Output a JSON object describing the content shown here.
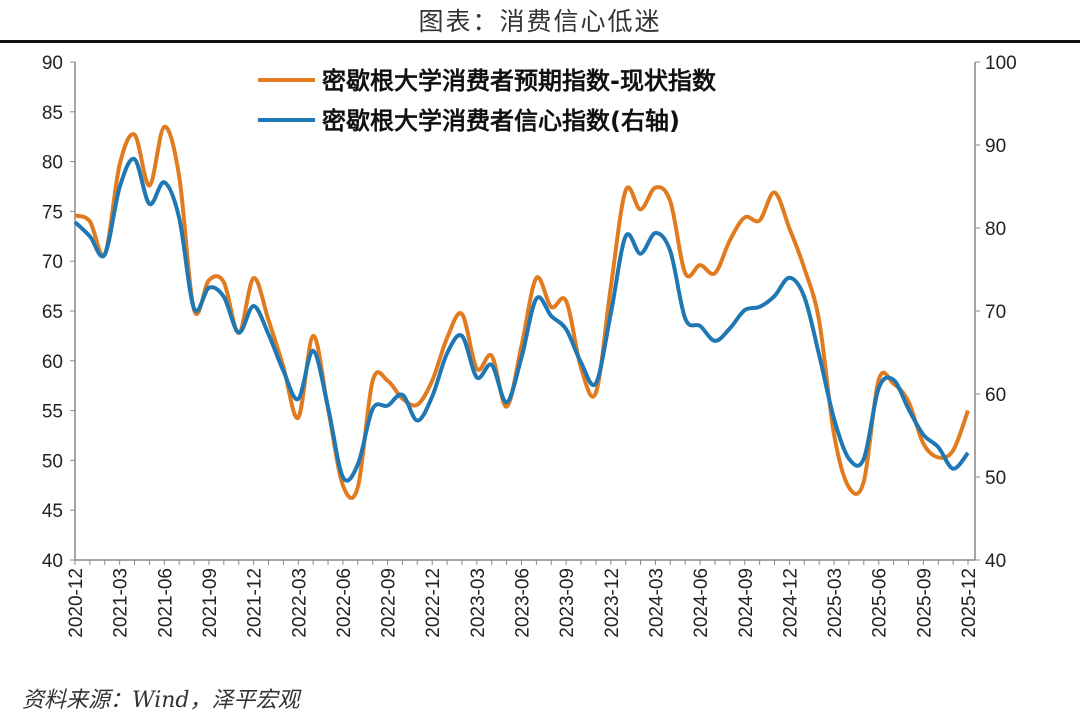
{
  "title": "图表：消费信心低迷",
  "source": "资料来源：Wind，泽平宏观",
  "chart_data": {
    "type": "line",
    "title": "图表：消费信心低迷",
    "x": [
      "2020-12",
      "2021-01",
      "2021-02",
      "2021-03",
      "2021-04",
      "2021-05",
      "2021-06",
      "2021-07",
      "2021-08",
      "2021-09",
      "2021-10",
      "2021-11",
      "2021-12",
      "2022-01",
      "2022-02",
      "2022-03",
      "2022-04",
      "2022-05",
      "2022-06",
      "2022-07",
      "2022-08",
      "2022-09",
      "2022-10",
      "2022-11",
      "2022-12",
      "2023-01",
      "2023-02",
      "2023-03",
      "2023-04",
      "2023-05",
      "2023-06",
      "2023-07",
      "2023-08",
      "2023-09",
      "2023-10",
      "2023-11",
      "2023-12",
      "2024-01",
      "2024-02",
      "2024-03",
      "2024-04",
      "2024-05",
      "2024-06",
      "2024-07",
      "2024-08",
      "2024-09",
      "2024-10",
      "2024-11",
      "2024-12",
      "2025-01",
      "2025-02",
      "2025-03",
      "2025-04",
      "2025-05",
      "2025-06",
      "2025-07",
      "2025-08",
      "2025-09",
      "2025-10",
      "2025-11",
      "2025-12"
    ],
    "xticks": [
      "2020-12",
      "2021-03",
      "2021-06",
      "2021-09",
      "2021-12",
      "2022-03",
      "2022-06",
      "2022-09",
      "2022-12",
      "2023-03",
      "2023-06",
      "2023-09",
      "2023-12",
      "2024-03",
      "2024-06",
      "2024-09",
      "2024-12",
      "2025-03",
      "2025-06",
      "2025-09",
      "2025-12"
    ],
    "left_ylim": [
      40,
      90
    ],
    "left_yticks": [
      "40",
      "45",
      "50",
      "55",
      "60",
      "65",
      "70",
      "75",
      "80",
      "85",
      "90"
    ],
    "right_ylim": [
      40,
      100
    ],
    "right_yticks": [
      "40",
      "50",
      "60",
      "70",
      "80",
      "90",
      "100"
    ],
    "legend_position": "top-center",
    "series": [
      {
        "name": "密歇根大学消费者预期指数-现状指数",
        "axis": "left",
        "color": "#E07B1F",
        "values": [
          74.6,
          74.0,
          70.7,
          79.7,
          82.7,
          77.6,
          83.5,
          78.5,
          65.1,
          68.1,
          67.9,
          62.8,
          68.3,
          64.1,
          59.4,
          54.3,
          62.5,
          55.2,
          47.5,
          47.3,
          58.0,
          58.0,
          56.2,
          55.6,
          58.0,
          62.3,
          64.7,
          59.2,
          60.5,
          55.4,
          61.5,
          68.3,
          65.4,
          66.0,
          59.3,
          56.8,
          67.4,
          77.1,
          75.2,
          77.4,
          76.0,
          68.8,
          69.6,
          68.8,
          72.1,
          74.4,
          74.1,
          76.9,
          73.3,
          69.3,
          64.0,
          52.6,
          47.3,
          47.9,
          58.1,
          57.7,
          55.9,
          51.7,
          50.3,
          51.0,
          55.0
        ]
      },
      {
        "name": "密歇根大学消费者信心指数(右轴)",
        "axis": "right",
        "color": "#1F77B4",
        "values": [
          80.7,
          79.0,
          76.8,
          84.9,
          88.3,
          82.9,
          85.5,
          81.2,
          70.3,
          72.8,
          71.7,
          67.4,
          70.6,
          67.2,
          62.8,
          59.4,
          65.2,
          58.4,
          50.0,
          51.5,
          58.2,
          58.6,
          59.9,
          56.8,
          59.7,
          64.9,
          67.0,
          62.0,
          63.5,
          59.0,
          64.4,
          71.5,
          69.4,
          67.8,
          63.8,
          61.3,
          69.7,
          79.0,
          76.9,
          79.4,
          77.2,
          69.1,
          68.2,
          66.4,
          67.9,
          70.1,
          70.5,
          71.8,
          74.0,
          71.7,
          64.7,
          57.0,
          52.2,
          52.2,
          60.7,
          61.7,
          58.2,
          55.1,
          53.6,
          51.0,
          52.9
        ]
      }
    ]
  }
}
